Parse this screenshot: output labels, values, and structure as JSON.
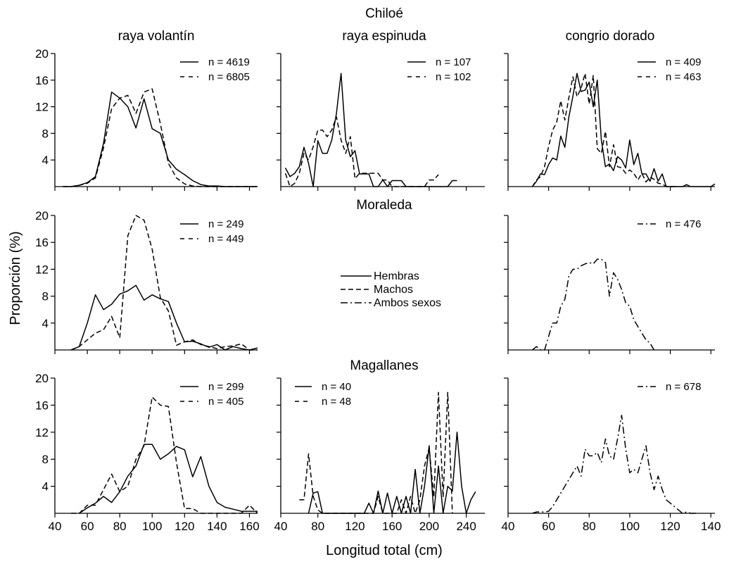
{
  "figure": {
    "ylabel": "Proporción (%)",
    "xlabel": "Longitud total (cm)",
    "row_labels": [
      "Chiloé",
      "Moraleda",
      "Magallanes"
    ],
    "column_labels": [
      "raya volantín",
      "raya espinuda",
      "congrio dorado"
    ],
    "legend": {
      "hembras": "Hembras",
      "machos": "Machos",
      "ambos": "Ambos sexos"
    }
  },
  "chart_data": [
    {
      "type": "line",
      "region": "Chiloé",
      "species": "raya volantín",
      "xlim": [
        40,
        165
      ],
      "ylim": [
        0,
        20
      ],
      "xticks": [
        40,
        60,
        80,
        100,
        120,
        140,
        160
      ],
      "yticks": [
        4,
        8,
        12,
        16,
        20
      ],
      "series": [
        {
          "name": "n = 4619",
          "style": "solid",
          "x": [
            45,
            50,
            55,
            60,
            65,
            70,
            75,
            80,
            85,
            90,
            95,
            100,
            105,
            110,
            115,
            120,
            125,
            130,
            135,
            140,
            145,
            150,
            155,
            160,
            165
          ],
          "y": [
            0,
            0,
            0.2,
            0.6,
            1.5,
            6.5,
            14.2,
            13.3,
            12,
            8.8,
            13.2,
            8.7,
            8,
            4,
            2.6,
            1.8,
            0.9,
            0.3,
            0.1,
            0.1,
            0,
            0,
            0,
            0,
            0
          ]
        },
        {
          "name": "n = 6805",
          "style": "dashed",
          "x": [
            45,
            50,
            55,
            60,
            65,
            70,
            75,
            80,
            85,
            90,
            95,
            100,
            105,
            110,
            115,
            120,
            125,
            130,
            135,
            140,
            145,
            150,
            155,
            160,
            165
          ],
          "y": [
            0,
            0,
            0.2,
            0.5,
            1.3,
            5.8,
            11.7,
            13.3,
            13.7,
            11,
            14.2,
            14.7,
            9.5,
            3.5,
            1.3,
            0.4,
            0.1,
            0,
            0,
            0,
            0,
            0,
            0,
            0,
            0
          ]
        }
      ]
    },
    {
      "type": "line",
      "region": "Chiloé",
      "species": "raya espinuda",
      "xlim": [
        40,
        260
      ],
      "ylim": [
        0,
        20
      ],
      "xticks": [
        40,
        80,
        120,
        160,
        200,
        240
      ],
      "yticks": [
        4,
        8,
        12,
        16,
        20
      ],
      "series": [
        {
          "name": "n = 107",
          "style": "solid",
          "x": [
            45,
            50,
            55,
            60,
            65,
            70,
            75,
            80,
            85,
            90,
            95,
            100,
            105,
            110,
            115,
            120,
            125,
            130,
            135,
            140,
            145,
            150,
            155,
            160,
            165,
            170,
            175,
            180,
            185,
            190,
            195,
            200,
            205,
            210,
            215,
            220,
            225,
            230
          ],
          "y": [
            2.8,
            1.5,
            2,
            3,
            5.9,
            3.5,
            0,
            6.9,
            5,
            5,
            7,
            11,
            17,
            7,
            4.5,
            5.4,
            1.9,
            1.9,
            1.9,
            0,
            0,
            1,
            0,
            0.9,
            0.9,
            0.9,
            0,
            0,
            0,
            0,
            0,
            0,
            0,
            0,
            0,
            0,
            0.9,
            0.9
          ]
        },
        {
          "name": "n = 102",
          "style": "dashed",
          "x": [
            45,
            50,
            55,
            60,
            65,
            70,
            75,
            80,
            85,
            90,
            95,
            100,
            105,
            110,
            115,
            120,
            125,
            130,
            135,
            140,
            145,
            150,
            155,
            160,
            165,
            170,
            175,
            180,
            185,
            190,
            195,
            200,
            205,
            210
          ],
          "y": [
            2,
            0,
            0.5,
            2,
            5,
            4,
            6,
            8.5,
            8.5,
            7.5,
            8.5,
            10.5,
            7,
            5,
            7.5,
            1.2,
            2,
            2,
            2,
            2,
            2,
            1,
            1,
            0,
            0,
            0,
            0,
            0,
            0,
            0,
            0,
            1,
            1,
            1.8
          ]
        }
      ]
    },
    {
      "type": "line",
      "region": "Chiloé",
      "species": "congrio dorado",
      "xlim": [
        40,
        142
      ],
      "ylim": [
        0,
        20
      ],
      "xticks": [
        40,
        60,
        80,
        100,
        120,
        140
      ],
      "yticks": [
        4,
        8,
        12,
        16,
        20
      ],
      "series": [
        {
          "name": "n = 409",
          "style": "solid",
          "x": [
            52,
            54,
            56,
            58,
            60,
            62,
            64,
            66,
            68,
            70,
            72,
            74,
            76,
            78,
            80,
            82,
            84,
            86,
            88,
            90,
            92,
            94,
            96,
            98,
            100,
            102,
            104,
            106,
            108,
            110,
            112,
            114,
            116,
            118,
            120,
            122,
            124,
            126,
            128,
            130,
            132,
            134,
            136,
            138,
            140,
            142
          ],
          "y": [
            0,
            0.8,
            1.9,
            1.8,
            3.3,
            4.3,
            4,
            7.6,
            5.9,
            10.5,
            13.6,
            17,
            14.3,
            14.5,
            15.7,
            12,
            16,
            7,
            3,
            3.4,
            2.4,
            4.5,
            4,
            2.8,
            7,
            3.3,
            5,
            1.9,
            1.9,
            0.8,
            2.7,
            0.8,
            1.9,
            0,
            0,
            0,
            0,
            0,
            0.3,
            0,
            0,
            0,
            0,
            0,
            0,
            0.4
          ]
        },
        {
          "name": "n = 463",
          "style": "dashed",
          "x": [
            52,
            54,
            56,
            58,
            60,
            62,
            64,
            66,
            68,
            70,
            72,
            74,
            76,
            78,
            80,
            82,
            84,
            86,
            88,
            90,
            92,
            94,
            96,
            98,
            100,
            102,
            104,
            106,
            108,
            110,
            112,
            114,
            116,
            118,
            120,
            122,
            124
          ],
          "y": [
            0,
            1,
            1.5,
            3,
            6,
            8.5,
            9.7,
            12.9,
            10,
            13.4,
            16.5,
            13.5,
            14.8,
            17,
            12.4,
            16.7,
            5.7,
            5,
            8.3,
            3,
            6.3,
            3,
            2.8,
            2,
            2.5,
            2,
            1,
            2,
            0.7,
            1.4,
            1.1,
            0.5,
            0.4,
            0,
            0,
            0,
            0
          ]
        }
      ]
    },
    {
      "type": "line",
      "region": "Moraleda",
      "species": "raya volantín",
      "xlim": [
        40,
        165
      ],
      "ylim": [
        0,
        20
      ],
      "xticks": [
        40,
        60,
        80,
        100,
        120,
        140,
        160
      ],
      "yticks": [
        4,
        8,
        12,
        16,
        20
      ],
      "series": [
        {
          "name": "n = 249",
          "style": "solid",
          "x": [
            50,
            55,
            60,
            65,
            70,
            75,
            80,
            85,
            90,
            95,
            100,
            105,
            110,
            115,
            120,
            125,
            130,
            135,
            140,
            145,
            150,
            155,
            160,
            165
          ],
          "y": [
            0,
            0.5,
            4,
            8.2,
            6,
            6.8,
            8.3,
            8.8,
            9.6,
            7.4,
            8.2,
            7.6,
            7.2,
            4,
            1.2,
            1.3,
            0.9,
            0.4,
            0.8,
            0,
            0.5,
            0.2,
            0,
            0.3
          ]
        },
        {
          "name": "n = 449",
          "style": "dashed",
          "x": [
            50,
            55,
            60,
            65,
            70,
            75,
            80,
            85,
            90,
            95,
            100,
            105,
            110,
            115,
            120,
            125,
            130,
            135,
            140,
            145,
            150,
            155,
            160,
            165
          ],
          "y": [
            0,
            0.5,
            1.5,
            2.5,
            3,
            5,
            1.8,
            17,
            20,
            19.3,
            15,
            7.8,
            5.8,
            0.7,
            1.2,
            1.5,
            0.8,
            0.5,
            0.2,
            0.5,
            0.6,
            0.9,
            0,
            0
          ]
        }
      ]
    },
    {
      "type": "line",
      "region": "Moraleda",
      "species": "congrio dorado",
      "xlim": [
        40,
        142
      ],
      "ylim": [
        0,
        20
      ],
      "xticks": [
        40,
        60,
        80,
        100,
        120,
        140
      ],
      "yticks": [
        4,
        8,
        12,
        16,
        20
      ],
      "series": [
        {
          "name": "n = 476",
          "style": "dashdot",
          "x": [
            52,
            54,
            56,
            58,
            60,
            62,
            64,
            66,
            68,
            70,
            72,
            74,
            76,
            78,
            80,
            82,
            84,
            86,
            88,
            90,
            92,
            94,
            96,
            98,
            100,
            102,
            104,
            106,
            108,
            110,
            112
          ],
          "y": [
            0,
            0.5,
            0,
            0,
            2,
            4,
            4,
            6.5,
            7.5,
            11,
            12,
            12,
            12.5,
            12.8,
            13,
            12.8,
            13.5,
            13.5,
            13,
            8,
            11.5,
            10.5,
            9,
            7,
            6.5,
            4.5,
            3.5,
            2.5,
            1.5,
            1,
            0
          ]
        }
      ]
    },
    {
      "type": "line",
      "region": "Magallanes",
      "species": "raya volantín",
      "xlim": [
        40,
        165
      ],
      "ylim": [
        0,
        20
      ],
      "xticks": [
        40,
        60,
        80,
        100,
        120,
        140,
        160
      ],
      "yticks": [
        4,
        8,
        12,
        16,
        20
      ],
      "series": [
        {
          "name": "n = 299",
          "style": "solid",
          "x": [
            55,
            60,
            65,
            70,
            75,
            80,
            85,
            90,
            95,
            100,
            105,
            110,
            115,
            120,
            125,
            130,
            135,
            140,
            145,
            150,
            155,
            160,
            165
          ],
          "y": [
            0,
            0.8,
            1.5,
            2.5,
            1.6,
            3.2,
            5.5,
            7,
            10.2,
            10.2,
            8,
            8.8,
            9.9,
            9.4,
            5.4,
            8.4,
            4,
            1.6,
            0.9,
            0.6,
            0.3,
            0.3,
            0.3
          ]
        },
        {
          "name": "n = 405",
          "style": "dashed",
          "x": [
            50,
            55,
            60,
            65,
            70,
            75,
            80,
            85,
            90,
            95,
            100,
            105,
            110,
            115,
            120,
            125,
            130,
            135,
            140,
            145,
            150,
            155,
            160,
            165
          ],
          "y": [
            0,
            0,
            1.2,
            1.2,
            3.5,
            5.8,
            3.2,
            4,
            8,
            10,
            17.2,
            16,
            15.8,
            7.5,
            0.7,
            0.7,
            0,
            0,
            0,
            0,
            0,
            0,
            1.2,
            0
          ]
        }
      ]
    },
    {
      "type": "line",
      "region": "Magallanes",
      "species": "raya espinuda",
      "xlim": [
        40,
        260
      ],
      "ylim": [
        0,
        20
      ],
      "xticks": [
        40,
        80,
        120,
        160,
        200,
        240
      ],
      "yticks": [
        4,
        8,
        12,
        16,
        20
      ],
      "series": [
        {
          "name": "n = 40",
          "style": "solid",
          "x": [
            70,
            75,
            80,
            85,
            130,
            135,
            140,
            145,
            150,
            155,
            160,
            165,
            170,
            175,
            180,
            185,
            190,
            195,
            200,
            205,
            210,
            215,
            220,
            225,
            230,
            235,
            240,
            245,
            250
          ],
          "y": [
            0,
            3,
            3.2,
            0,
            0,
            1.5,
            0,
            3.3,
            0,
            3,
            0,
            2.5,
            0,
            2.5,
            0,
            6.5,
            0,
            4,
            10,
            0,
            7,
            0,
            4,
            3.3,
            12,
            4,
            0,
            2,
            3.2
          ]
        },
        {
          "name": "n = 48",
          "style": "dashed",
          "x": [
            60,
            65,
            70,
            75,
            80,
            85,
            140,
            145,
            150,
            155,
            160,
            165,
            170,
            175,
            180,
            185,
            190,
            195,
            200,
            205,
            210,
            215,
            220,
            225
          ],
          "y": [
            2,
            2,
            8.8,
            2.5,
            0.5,
            0,
            0,
            2.5,
            0,
            0,
            0,
            0,
            2,
            0,
            2.5,
            0,
            2,
            7,
            9.7,
            2.4,
            17.9,
            2.4,
            17.9,
            0
          ]
        }
      ]
    },
    {
      "type": "line",
      "region": "Magallanes",
      "species": "congrio dorado",
      "xlim": [
        40,
        142
      ],
      "ylim": [
        0,
        20
      ],
      "xticks": [
        40,
        60,
        80,
        100,
        120,
        140
      ],
      "yticks": [
        4,
        8,
        12,
        16,
        20
      ],
      "series": [
        {
          "name": "n = 678",
          "style": "dashdot",
          "x": [
            52,
            54,
            56,
            58,
            60,
            62,
            64,
            66,
            68,
            70,
            72,
            74,
            76,
            78,
            80,
            82,
            84,
            86,
            88,
            90,
            92,
            94,
            96,
            98,
            100,
            102,
            104,
            106,
            108,
            110,
            112,
            114,
            116,
            118,
            120,
            122,
            124,
            126,
            128,
            130,
            132,
            134
          ],
          "y": [
            0,
            0.2,
            0.2,
            0.2,
            0.3,
            1,
            2,
            3,
            4,
            5,
            6,
            7,
            5.5,
            9.5,
            8.5,
            8.5,
            9,
            7.5,
            11,
            8.5,
            8,
            11,
            14.5,
            9.5,
            6,
            6.5,
            6,
            8,
            10,
            6,
            3.5,
            5.5,
            3.5,
            2,
            1.5,
            1,
            0.5,
            0,
            0.2,
            0,
            0,
            0
          ]
        }
      ]
    }
  ]
}
